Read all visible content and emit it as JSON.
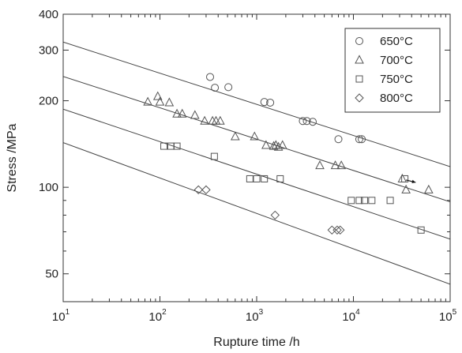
{
  "chart_data": {
    "type": "scatter",
    "title": "",
    "xlabel": "Rupture time /h",
    "ylabel": "Stress /MPa",
    "xscale": "log",
    "yscale": "log",
    "xlim": [
      10,
      100000
    ],
    "ylim": [
      40,
      400
    ],
    "grid": false,
    "legend_position": "top-right",
    "x_ticks": [
      {
        "value": 10,
        "base": "10",
        "exp": "1"
      },
      {
        "value": 100,
        "base": "10",
        "exp": "2"
      },
      {
        "value": 1000,
        "base": "10",
        "exp": "3"
      },
      {
        "value": 10000,
        "base": "10",
        "exp": "4"
      },
      {
        "value": 100000,
        "base": "10",
        "exp": "5"
      }
    ],
    "y_ticks": [
      {
        "value": 50,
        "label": "50"
      },
      {
        "value": 100,
        "label": "100"
      },
      {
        "value": 200,
        "label": "200"
      },
      {
        "value": 300,
        "label": "300"
      },
      {
        "value": 400,
        "label": "400"
      }
    ],
    "series": [
      {
        "name": "650°C",
        "marker": "circle",
        "color": "#555555",
        "points": [
          [
            330,
            242
          ],
          [
            370,
            222
          ],
          [
            510,
            223
          ],
          [
            1200,
            198
          ],
          [
            1380,
            197
          ],
          [
            3000,
            170
          ],
          [
            3300,
            170
          ],
          [
            3800,
            169
          ],
          [
            7000,
            147
          ],
          [
            11500,
            147
          ],
          [
            12200,
            147
          ]
        ],
        "fit": [
          [
            10,
            320
          ],
          [
            100000,
            118
          ]
        ]
      },
      {
        "name": "700°C",
        "marker": "triangle",
        "color": "#555555",
        "points": [
          [
            75,
            198
          ],
          [
            95,
            207
          ],
          [
            100,
            198
          ],
          [
            125,
            197
          ],
          [
            150,
            180
          ],
          [
            170,
            180
          ],
          [
            230,
            178
          ],
          [
            290,
            170
          ],
          [
            350,
            170
          ],
          [
            380,
            170
          ],
          [
            420,
            170
          ],
          [
            600,
            150
          ],
          [
            950,
            150
          ],
          [
            1250,
            140
          ],
          [
            1500,
            139
          ],
          [
            1580,
            140
          ],
          [
            1680,
            138
          ],
          [
            1850,
            140
          ],
          [
            4500,
            119
          ],
          [
            6500,
            119
          ],
          [
            7500,
            119
          ],
          [
            32000,
            107
          ],
          [
            35000,
            98
          ],
          [
            60000,
            98
          ]
        ],
        "fit": [
          [
            10,
            243
          ],
          [
            100000,
            89
          ]
        ]
      },
      {
        "name": "750°C",
        "marker": "square",
        "color": "#555555",
        "points": [
          [
            110,
            139
          ],
          [
            130,
            139
          ],
          [
            150,
            139
          ],
          [
            365,
            128
          ],
          [
            850,
            107
          ],
          [
            1000,
            107
          ],
          [
            1200,
            107
          ],
          [
            1750,
            107
          ],
          [
            9500,
            90
          ],
          [
            11500,
            90
          ],
          [
            13000,
            90
          ],
          [
            15500,
            90
          ],
          [
            24000,
            90
          ],
          [
            34000,
            107
          ],
          [
            50000,
            71
          ]
        ],
        "fit": [
          [
            10,
            187
          ],
          [
            100000,
            66
          ]
        ]
      },
      {
        "name": "800°C",
        "marker": "diamond",
        "color": "#555555",
        "points": [
          [
            250,
            98
          ],
          [
            300,
            98
          ],
          [
            1550,
            80
          ],
          [
            6000,
            71
          ],
          [
            6800,
            71
          ],
          [
            7300,
            71
          ]
        ],
        "fit": [
          [
            10,
            143
          ],
          [
            100000,
            46
          ]
        ]
      }
    ],
    "annotations": [
      {
        "type": "arrow",
        "from": [
          35000,
          106
        ],
        "to": [
          44000,
          104
        ]
      }
    ]
  }
}
